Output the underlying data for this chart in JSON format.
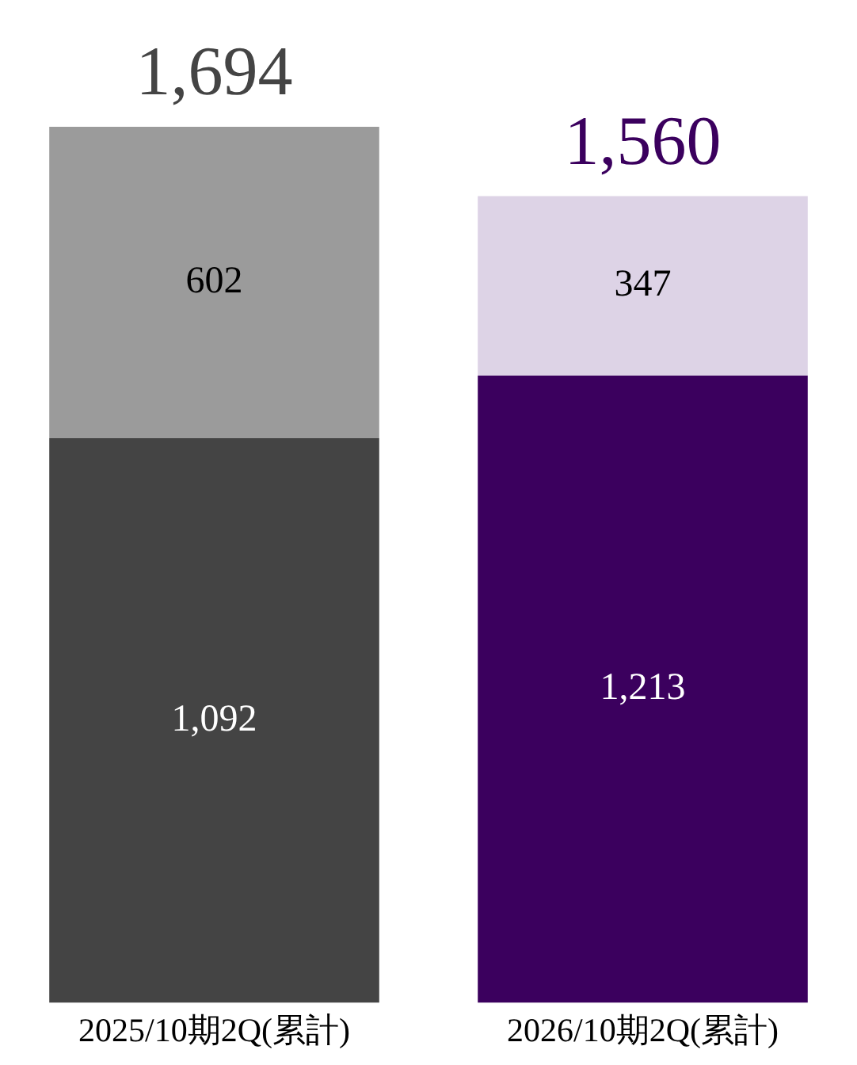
{
  "chart_data": {
    "type": "bar",
    "stacked": true,
    "categories": [
      "2025/10期2Q(累計)",
      "2026/10期2Q(累計)"
    ],
    "series": [
      {
        "colors": [
          "#444444",
          "#3b005e"
        ],
        "values": [
          1092,
          1213
        ],
        "value_labels": [
          "1,092",
          "1,213"
        ]
      },
      {
        "colors": [
          "#9b9b9b",
          "#ddd3e6"
        ],
        "values": [
          602,
          347
        ],
        "value_labels": [
          "602",
          "347"
        ]
      }
    ],
    "totals": [
      "1,694",
      "1,560"
    ],
    "grid": false,
    "legend": false
  }
}
